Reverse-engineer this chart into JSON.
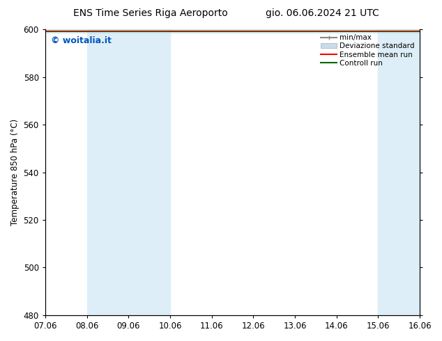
{
  "title": "ENS Time Series Riga Aeroporto",
  "title2": "gio. 06.06.2024 21 UTC",
  "ylabel": "Temperature 850 hPa (°C)",
  "xlim_left": 0,
  "xlim_right": 9,
  "ylim_bottom": 480,
  "ylim_top": 600,
  "yticks": [
    480,
    500,
    520,
    540,
    560,
    580,
    600
  ],
  "xtick_labels": [
    "07.06",
    "08.06",
    "09.06",
    "10.06",
    "11.06",
    "12.06",
    "13.06",
    "14.06",
    "15.06",
    "16.06"
  ],
  "xtick_positions": [
    0,
    1,
    2,
    3,
    4,
    5,
    6,
    7,
    8,
    9
  ],
  "shaded_bands": [
    {
      "x_start": 1,
      "x_end": 2,
      "color": "#ddeef8"
    },
    {
      "x_start": 2,
      "x_end": 3,
      "color": "#ddeef8"
    },
    {
      "x_start": 8,
      "x_end": 9,
      "color": "#ddeef8"
    }
  ],
  "watermark_text": "© woitalia.it",
  "watermark_color": "#0055bb",
  "background_color": "#ffffff",
  "plot_bg_color": "#ffffff",
  "title_fontsize": 10,
  "axis_fontsize": 8.5,
  "watermark_fontsize": 9,
  "legend_fontsize": 7.5
}
